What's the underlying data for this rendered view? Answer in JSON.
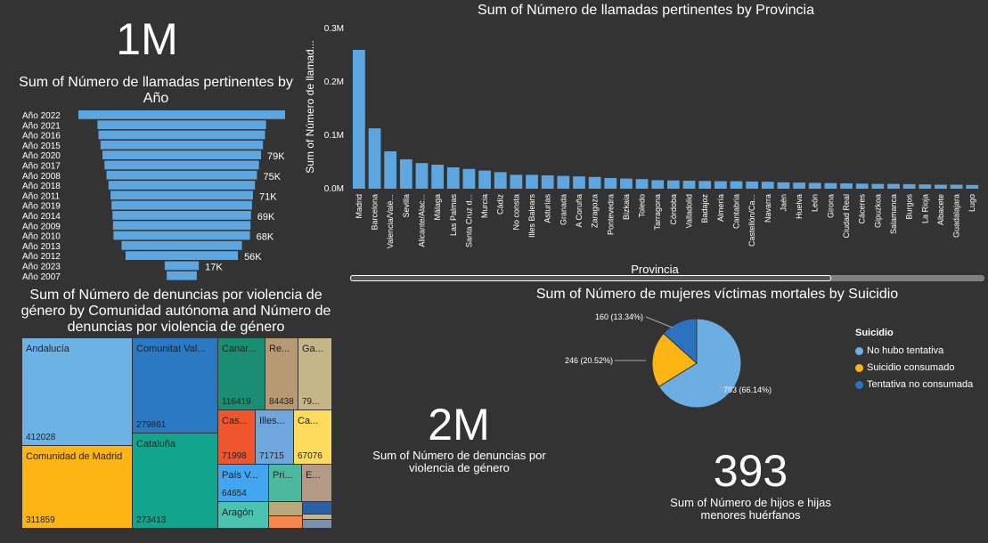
{
  "kpi_calls": {
    "value": "1M"
  },
  "funnel": {
    "title": "Sum of Número de llamadas pertinentes by Año",
    "color": "#5DA6E0",
    "chart_data": {
      "type": "bar",
      "orientation": "funnel",
      "categories": [
        "Año 2022",
        "Año 2021",
        "Año 2016",
        "Año 2015",
        "Año 2020",
        "Año 2017",
        "Año 2008",
        "Año 2018",
        "Año 2011",
        "Año 2019",
        "Año 2014",
        "Año 2009",
        "Año 2010",
        "Año 2013",
        "Año 2012",
        "Año 2023",
        "Año 2007"
      ],
      "values": [
        103000,
        84000,
        83000,
        81000,
        79000,
        77000,
        75000,
        73000,
        71000,
        70000,
        69000,
        68500,
        68000,
        60000,
        56000,
        17000,
        15000
      ],
      "data_labels": {
        "4": "79K",
        "6": "75K",
        "8": "71K",
        "10": "69K",
        "12": "68K",
        "14": "56K",
        "15": "17K"
      }
    }
  },
  "province_chart": {
    "title": "Sum of Número de llamadas pertinentes by Provincia",
    "color": "#5DA6E0",
    "chart_data": {
      "type": "bar",
      "ylabel": "Sum of Número de llamad...",
      "xlabel": "Provincia",
      "yticks": [
        "0.0M",
        "0.1M",
        "0.2M",
        "0.3M"
      ],
      "ylim": [
        0,
        300000
      ],
      "categories": [
        "Madrid",
        "Barcelona",
        "Valencia/Valè...",
        "Sevilla",
        "Alicante/Alac...",
        "Málaga",
        "Las Palmas",
        "Santa Cruz d...",
        "Murcia",
        "Cádiz",
        "No consta",
        "Illes Balears",
        "Asturias",
        "Granada",
        "A Coruña",
        "Zaragoza",
        "Pontevedra",
        "Bizkaia",
        "Toledo",
        "Tarragona",
        "Córdoba",
        "Valladolid",
        "Badajoz",
        "Almería",
        "Cantabria",
        "Castellón/Ca...",
        "Navarra",
        "Jaén",
        "Huelva",
        "León",
        "Girona",
        "Ciudad Real",
        "Cáceres",
        "Gipuzkoa",
        "Salamanca",
        "Burgos",
        "La Rioja",
        "Albacete",
        "Guadalajara",
        "Lugo"
      ],
      "values": [
        260000,
        113000,
        70000,
        55000,
        48000,
        45000,
        40000,
        37000,
        34000,
        31000,
        26000,
        26000,
        25000,
        24000,
        23000,
        22000,
        20000,
        19000,
        18000,
        16000,
        15500,
        15000,
        14500,
        14000,
        14000,
        13500,
        13000,
        12000,
        11500,
        11000,
        10500,
        10000,
        9500,
        9000,
        9000,
        8500,
        8000,
        7500,
        7500,
        7000
      ]
    },
    "scrollbar_label": "Provincia"
  },
  "treemap": {
    "title": "Sum of Número de denuncias por violencia de género by Comunidad autónoma and Número de denuncias por violencia de género",
    "cells": [
      {
        "label": "Andalucía",
        "value": "412028",
        "color": "#6CB2E4"
      },
      {
        "label": "Comunidad de Madrid",
        "value": "311859",
        "color": "#FDB515"
      },
      {
        "label": "Comunitat Val...",
        "value": "279861",
        "color": "#2B78C3"
      },
      {
        "label": "Cataluña",
        "value": "273413",
        "color": "#12A58E"
      },
      {
        "label": "Canar...",
        "value": "116419",
        "color": "#1A8E73"
      },
      {
        "label": "Re...",
        "value": "84438",
        "color": "#B79A74"
      },
      {
        "label": "Ga...",
        "value": "79...",
        "color": "#C6B586"
      },
      {
        "label": "Cas...",
        "value": "71998",
        "color": "#F0562E"
      },
      {
        "label": "Illes...",
        "value": "71715",
        "color": "#6FA6DE"
      },
      {
        "label": "Ca...",
        "value": "67076",
        "color": "#FDDB5C"
      },
      {
        "label": "País V...",
        "value": "64654",
        "color": "#41A5F0"
      },
      {
        "label": "Pri...",
        "value": "",
        "color": "#4CB99E"
      },
      {
        "label": "E...",
        "value": "",
        "color": "#B49A86"
      },
      {
        "label": "Aragón",
        "value": "",
        "color": "#4CC2B0"
      }
    ]
  },
  "kpi_denuncias": {
    "value": "2M",
    "label": "Sum of Número de denuncias por violencia de género"
  },
  "kpi_hijos": {
    "value": "393",
    "label": "Sum of Número de hijos e hijas menores huérfanos"
  },
  "pie": {
    "title": "Sum of Número de mujeres víctimas mortales by Suicidio",
    "legend_title": "Suicidio",
    "chart_data": {
      "type": "pie",
      "slices": [
        {
          "name": "No hubo tentativa",
          "value": 793,
          "label": "793 (66.14%)",
          "color": "#6CAEE2"
        },
        {
          "name": "Suicidio consumado",
          "value": 246,
          "label": "246 (20.52%)",
          "color": "#FDB515"
        },
        {
          "name": "Tentativa no consumada",
          "value": 160,
          "label": "160 (13.34%)",
          "color": "#2C72BF"
        }
      ]
    }
  }
}
